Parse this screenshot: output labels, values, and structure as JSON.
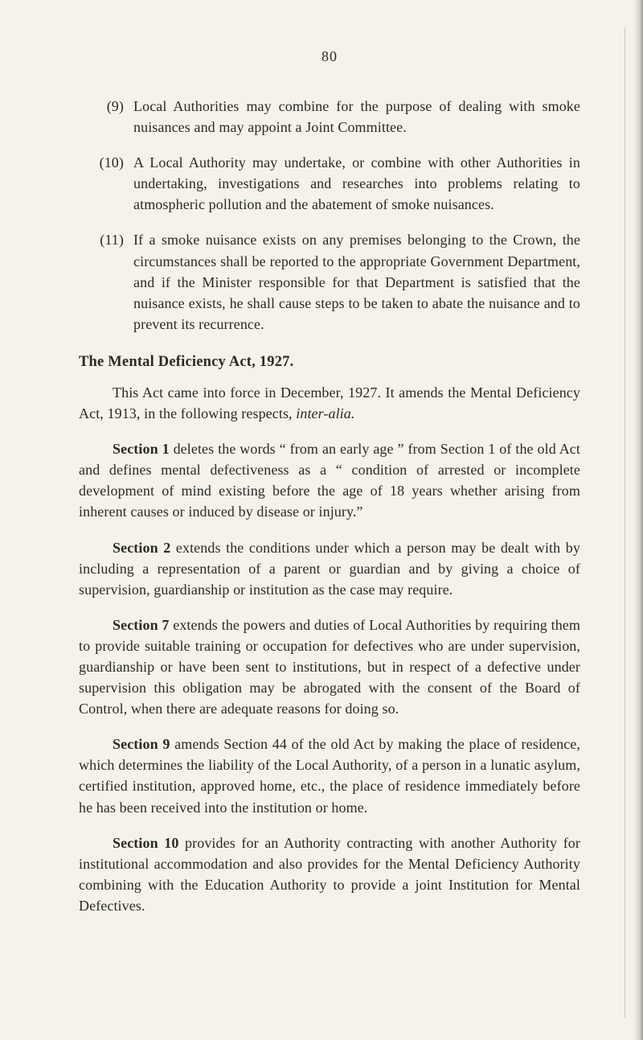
{
  "page_number": "80",
  "items": [
    {
      "num": "(9)",
      "text": "Local Authorities may combine for the purpose of dealing with smoke nuisances and may appoint a Joint Committee."
    },
    {
      "num": "(10)",
      "text": "A Local Authority may undertake, or combine with other Authorities in undertaking, investigations and researches into problems relating to atmospheric pollution and the abatement of smoke nuisances."
    },
    {
      "num": "(11)",
      "text": "If a smoke nuisance exists on any premises belonging to the Crown, the circumstances shall be reported to the appropriate Government Department, and if the Minister responsible for that Department is satisfied that the nuisance exists, he shall cause steps to be taken to abate the nuisance and to prevent its recurrence."
    }
  ],
  "heading": "The Mental Deficiency Act, 1927.",
  "intro_part1": "This Act came into force in December, 1927. It amends the Mental Deficiency Act, 1913, in the following respects, ",
  "intro_italic": "inter-alia.",
  "sections": {
    "s1": {
      "label": "Section 1",
      "text": " deletes the words “ from an early age ” from Section 1 of the old Act and defines mental defectiveness as a “ condition of arrested or incomplete development of mind existing before the age of 18 years whether arising from inherent causes or induced by disease or injury.”"
    },
    "s2": {
      "label": "Section 2",
      "text": " extends the conditions under which a person may be dealt with by including a representation of a parent or guardian and by giving a choice of supervision, guardianship or institution as the case may require."
    },
    "s7": {
      "label": "Section 7",
      "text": " extends the powers and duties of Local Authorities by requiring them to provide suitable training or occupation for defectives who are under supervision, guardianship or have been sent to institutions, but in respect of a defective under supervision this obligation may be abrogated with the consent of the Board of Control, when there are adequate reasons for doing so."
    },
    "s9": {
      "label": "Section 9",
      "text": " amends Section 44 of the old Act by making the place of residence, which determines the liability of the Local Authority, of a person in a lunatic asylum, certified institution, approved home, etc., the place of residence immediately before he has been received into the institution or home."
    },
    "s10": {
      "label": "Section 10",
      "text": " provides for an Authority contracting with another Authority for institutional accommodation and also provides for the Mental Deficiency Authority combining with the Education Authority to provide a joint Institution for Mental Defectives."
    }
  }
}
